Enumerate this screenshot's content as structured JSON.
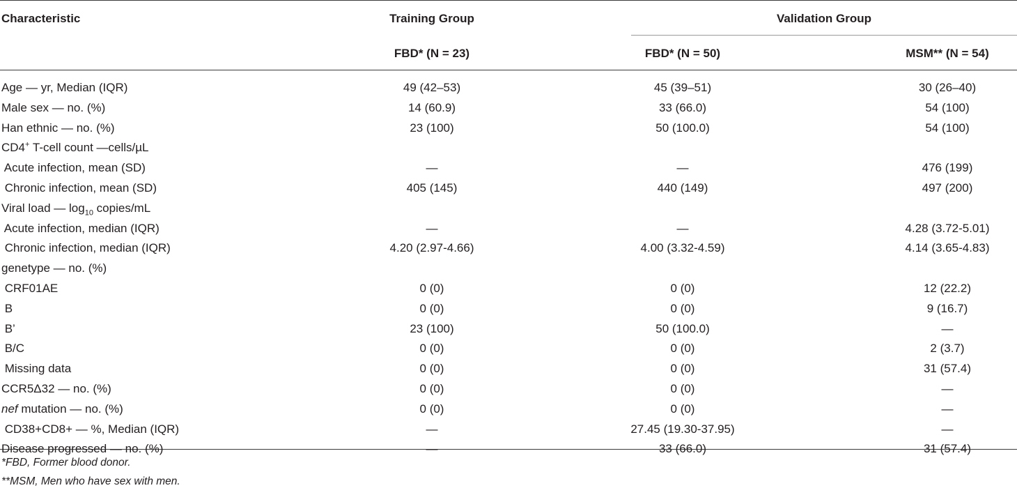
{
  "header": {
    "characteristic": "Characteristic",
    "training_group": "Training Group",
    "validation_group": "Validation Group",
    "col_training_fbd": "FBD* (N = 23)",
    "col_validation_fbd": "FBD* (N = 50)",
    "col_validation_msm": "MSM** (N = 54)"
  },
  "rows": [
    {
      "label": "Age — yr, Median (IQR)",
      "v1": "49 (42–53)",
      "v2": "45 (39–51)",
      "v3": "30 (26–40)"
    },
    {
      "label": "Male sex — no. (%)",
      "v1": "14 (60.9)",
      "v2": "33 (66.0)",
      "v3": "54 (100)"
    },
    {
      "label": "Han ethnic — no. (%)",
      "v1": "23 (100)",
      "v2": "50 (100.0)",
      "v3": "54 (100)"
    },
    {
      "label_pre": "CD4",
      "label_sup": "+",
      "label_post": " T-cell count —cells/µL",
      "v1": "",
      "v2": "",
      "v3": ""
    },
    {
      "label": " Acute infection, mean (SD)",
      "v1": "—",
      "v2": "—",
      "v3": "476 (199)"
    },
    {
      "label": " Chronic infection, mean (SD)",
      "v1": "405 (145)",
      "v2": "440 (149)",
      "v3": "497 (200)"
    },
    {
      "label_pre": "Viral load — log",
      "label_sub": "10",
      "label_post": " copies/mL",
      "v1": "",
      "v2": "",
      "v3": ""
    },
    {
      "label": " Acute infection, median (IQR)",
      "v1": "—",
      "v2": "—",
      "v3": "4.28 (3.72-5.01)"
    },
    {
      "label": " Chronic infection, median (IQR)",
      "v1": "4.20 (2.97-4.66)",
      "v2": "4.00 (3.32-4.59)",
      "v3": "4.14 (3.65-4.83)"
    },
    {
      "label": "genetype — no. (%)",
      "v1": "",
      "v2": "",
      "v3": ""
    },
    {
      "label": " CRF01AE",
      "v1": "0 (0)",
      "v2": "0 (0)",
      "v3": "12 (22.2)"
    },
    {
      "label": " B",
      "v1": "0 (0)",
      "v2": "0 (0)",
      "v3": "9 (16.7)"
    },
    {
      "label": " B’",
      "v1": "23 (100)",
      "v2": "50 (100.0)",
      "v3": "—"
    },
    {
      "label": " B/C",
      "v1": "0 (0)",
      "v2": "0 (0)",
      "v3": "2 (3.7)"
    },
    {
      "label": " Missing data",
      "v1": "0 (0)",
      "v2": "0 (0)",
      "v3": "31 (57.4)"
    },
    {
      "label": "CCR5Δ32 — no. (%)",
      "v1": "0 (0)",
      "v2": "0 (0)",
      "v3": "—"
    },
    {
      "label_italic": "nef",
      "label_post": " mutation — no. (%)",
      "v1": "0 (0)",
      "v2": "0 (0)",
      "v3": "—"
    },
    {
      "label": " CD38+CD8+ — %, Median (IQR)",
      "v1": "—",
      "v2": "27.45 (19.30-37.95)",
      "v3": "—"
    },
    {
      "label": "Disease progressed — no. (%)",
      "v1": "—",
      "v2": "33 (66.0)",
      "v3": "31 (57.4)"
    }
  ],
  "footnotes": [
    "*FBD, Former blood donor.",
    "**MSM, Men who have sex with men."
  ]
}
